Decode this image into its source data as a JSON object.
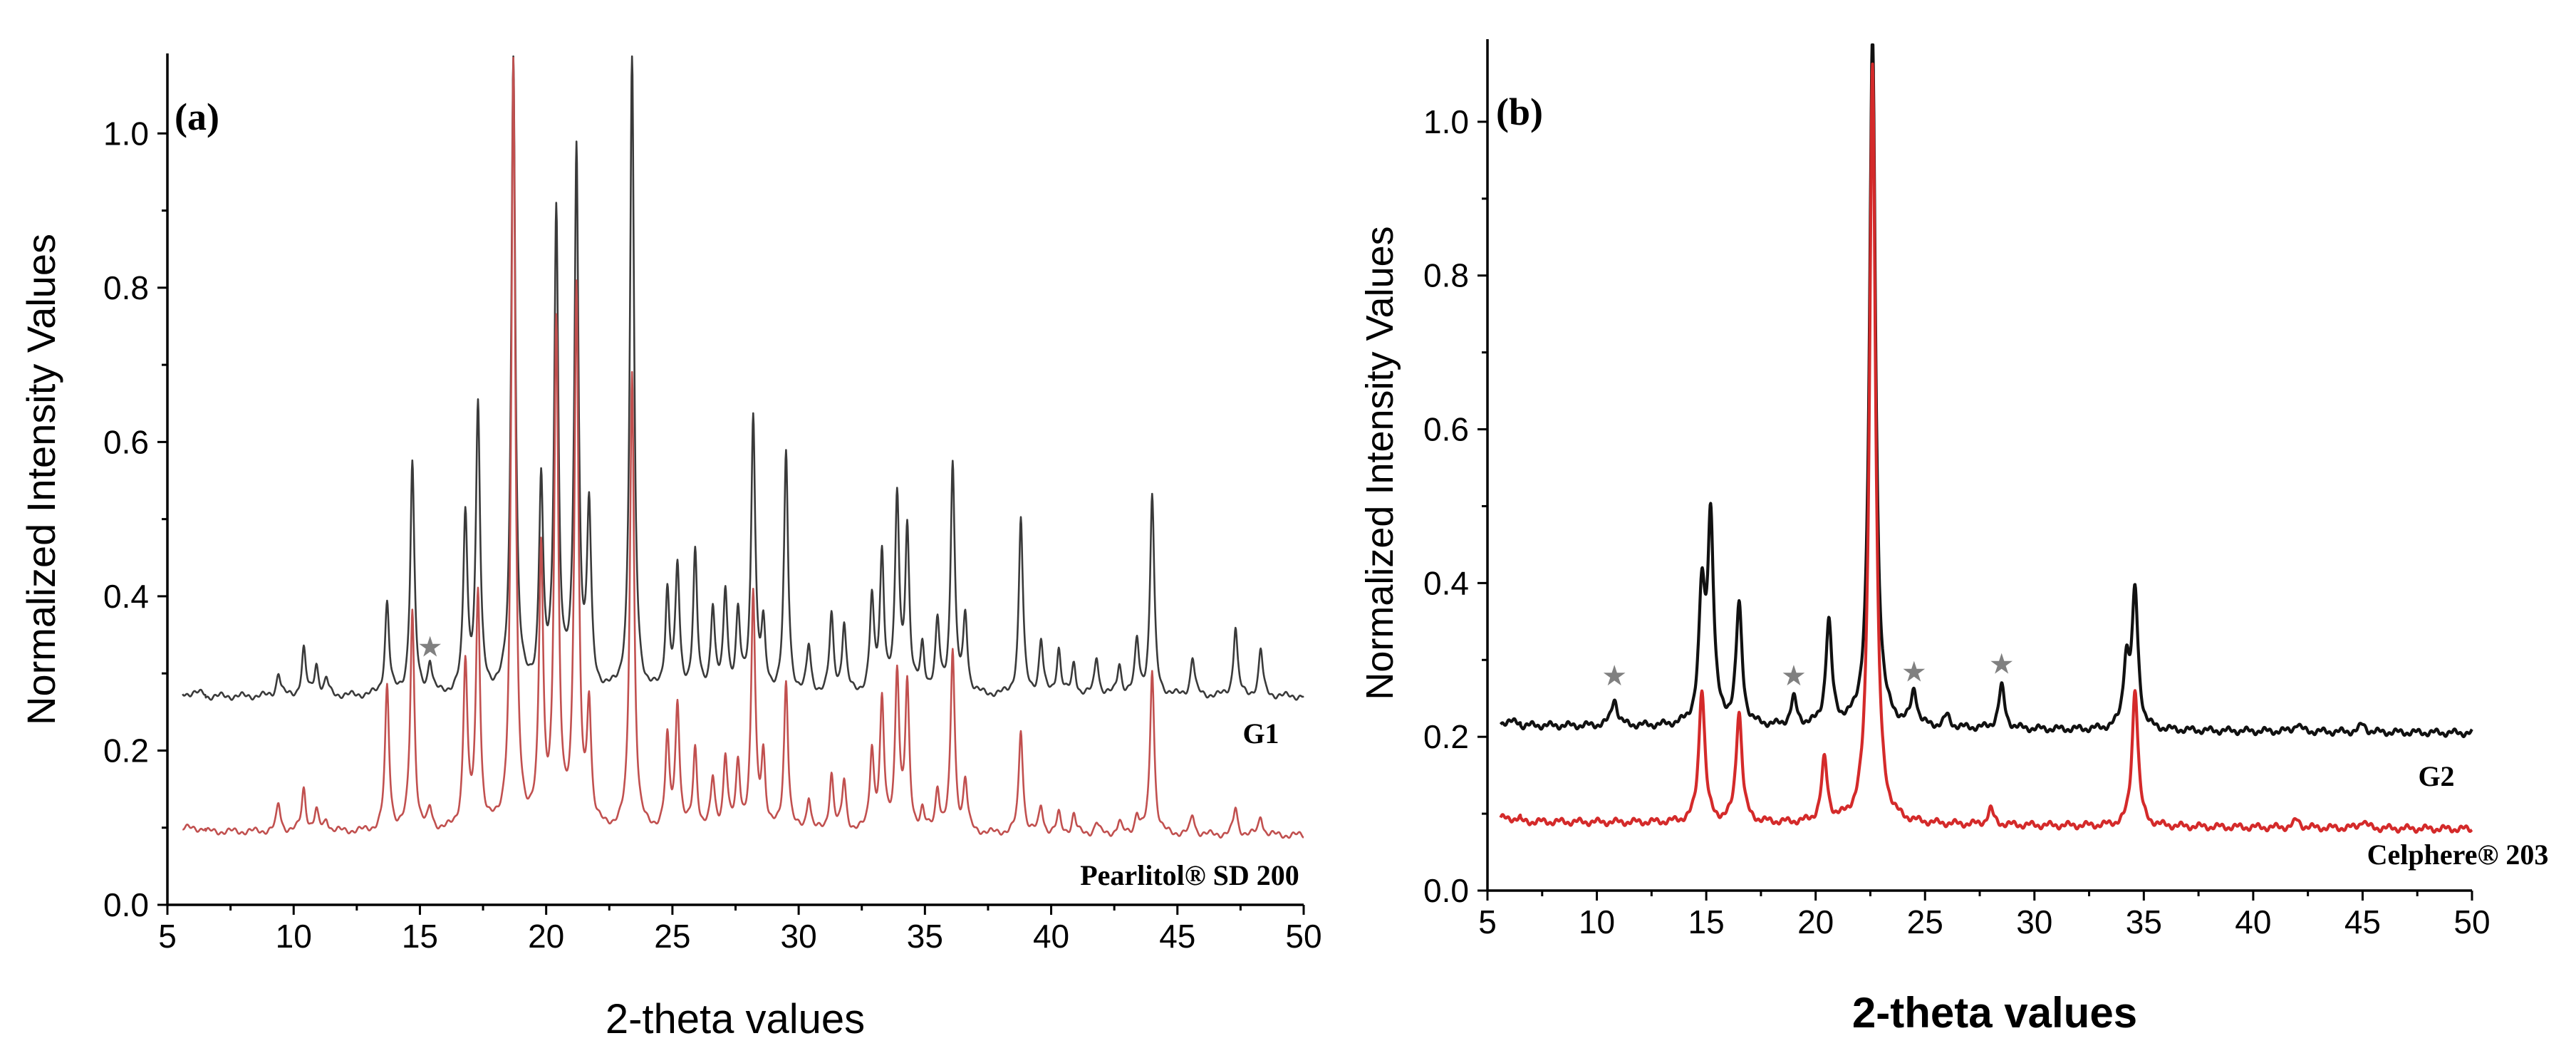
{
  "chart_data": [
    {
      "panel": "(a)",
      "type": "line",
      "xlabel": "2-theta values",
      "ylabel": "Normalized Intensity Values",
      "xlim": [
        5,
        50
      ],
      "ylim": [
        0.0,
        1.1
      ],
      "xticks": [
        5,
        10,
        15,
        20,
        25,
        30,
        35,
        40,
        45,
        50
      ],
      "yticks": [
        0.0,
        0.2,
        0.4,
        0.6,
        0.8,
        1.0
      ],
      "ytick_labels": [
        "0.0",
        "0.2",
        "0.4",
        "0.6",
        "0.8",
        "1.0"
      ],
      "series": [
        {
          "name": "G1",
          "color": "#3a3a3a",
          "baseline": 0.27,
          "end_baseline": 0.27,
          "peaks": [
            [
              9.4,
              0.3
            ],
            [
              10.4,
              0.33
            ],
            [
              10.9,
              0.31
            ],
            [
              11.3,
              0.29
            ],
            [
              13.7,
              0.39
            ],
            [
              14.7,
              0.57
            ],
            [
              15.4,
              0.31
            ],
            [
              16.8,
              0.5
            ],
            [
              17.3,
              0.64
            ],
            [
              18.7,
              1.1
            ],
            [
              19.8,
              0.54
            ],
            [
              20.4,
              0.89
            ],
            [
              21.2,
              0.97
            ],
            [
              21.7,
              0.5
            ],
            [
              23.4,
              1.1
            ],
            [
              24.8,
              0.4
            ],
            [
              25.2,
              0.43
            ],
            [
              25.9,
              0.45
            ],
            [
              26.6,
              0.38
            ],
            [
              27.1,
              0.4
            ],
            [
              27.6,
              0.37
            ],
            [
              28.2,
              0.63
            ],
            [
              28.6,
              0.35
            ],
            [
              29.5,
              0.58
            ],
            [
              30.4,
              0.33
            ],
            [
              31.3,
              0.37
            ],
            [
              31.8,
              0.36
            ],
            [
              32.9,
              0.39
            ],
            [
              33.3,
              0.45
            ],
            [
              33.9,
              0.52
            ],
            [
              34.3,
              0.48
            ],
            [
              34.9,
              0.33
            ],
            [
              35.5,
              0.36
            ],
            [
              36.1,
              0.57
            ],
            [
              36.6,
              0.37
            ],
            [
              38.8,
              0.5
            ],
            [
              39.6,
              0.34
            ],
            [
              40.3,
              0.33
            ],
            [
              40.9,
              0.31
            ],
            [
              41.8,
              0.32
            ],
            [
              42.7,
              0.31
            ],
            [
              43.4,
              0.34
            ],
            [
              44.0,
              0.53
            ],
            [
              45.6,
              0.32
            ],
            [
              47.3,
              0.36
            ],
            [
              48.3,
              0.33
            ]
          ]
        },
        {
          "name": "Pearlitol® SD 200",
          "color": "#c1504f",
          "baseline": 0.095,
          "end_baseline": 0.09,
          "peaks": [
            [
              9.4,
              0.13
            ],
            [
              10.4,
              0.15
            ],
            [
              10.9,
              0.12
            ],
            [
              11.3,
              0.11
            ],
            [
              13.7,
              0.28
            ],
            [
              14.7,
              0.38
            ],
            [
              15.4,
              0.12
            ],
            [
              16.8,
              0.31
            ],
            [
              17.3,
              0.4
            ],
            [
              18.7,
              1.09
            ],
            [
              19.8,
              0.45
            ],
            [
              20.4,
              0.74
            ],
            [
              21.2,
              0.79
            ],
            [
              21.7,
              0.25
            ],
            [
              23.4,
              0.69
            ],
            [
              24.8,
              0.21
            ],
            [
              25.2,
              0.26
            ],
            [
              25.9,
              0.2
            ],
            [
              26.6,
              0.16
            ],
            [
              27.1,
              0.19
            ],
            [
              27.6,
              0.18
            ],
            [
              28.2,
              0.4
            ],
            [
              28.6,
              0.19
            ],
            [
              29.5,
              0.29
            ],
            [
              30.4,
              0.14
            ],
            [
              31.3,
              0.17
            ],
            [
              31.8,
              0.16
            ],
            [
              32.9,
              0.2
            ],
            [
              33.3,
              0.26
            ],
            [
              33.9,
              0.3
            ],
            [
              34.3,
              0.28
            ],
            [
              34.9,
              0.12
            ],
            [
              35.5,
              0.15
            ],
            [
              36.1,
              0.33
            ],
            [
              36.6,
              0.16
            ],
            [
              38.8,
              0.23
            ],
            [
              39.6,
              0.13
            ],
            [
              40.3,
              0.12
            ],
            [
              40.9,
              0.12
            ],
            [
              41.8,
              0.11
            ],
            [
              42.7,
              0.11
            ],
            [
              43.4,
              0.12
            ],
            [
              44.0,
              0.31
            ],
            [
              45.6,
              0.12
            ],
            [
              47.3,
              0.13
            ],
            [
              48.3,
              0.12
            ]
          ]
        }
      ],
      "series_labels": [
        "G1",
        "Pearlitol® SD 200"
      ],
      "annotations": [
        {
          "text": "★",
          "x": 15.4,
          "y": 0.335
        }
      ]
    },
    {
      "panel": "(b)",
      "type": "line",
      "xlabel": "2-theta values",
      "ylabel": "Normalized Intensity Values",
      "xlim": [
        5,
        50
      ],
      "ylim": [
        0.0,
        1.1
      ],
      "xticks": [
        5,
        10,
        15,
        20,
        25,
        30,
        35,
        40,
        45,
        50
      ],
      "yticks": [
        0.0,
        0.2,
        0.4,
        0.6,
        0.8,
        1.0
      ],
      "ytick_labels": [
        "0.0",
        "0.2",
        "0.4",
        "0.6",
        "0.8",
        "1.0"
      ],
      "series": [
        {
          "name": "G2",
          "color": "#111111",
          "baseline": 0.215,
          "end_baseline": 0.205,
          "peaks": [
            [
              10.8,
              0.25
            ],
            [
              14.8,
              0.38
            ],
            [
              15.2,
              0.48
            ],
            [
              16.5,
              0.37
            ],
            [
              19.0,
              0.25
            ],
            [
              20.6,
              0.35
            ],
            [
              22.6,
              1.12
            ],
            [
              24.5,
              0.26
            ],
            [
              26.0,
              0.23
            ],
            [
              28.5,
              0.27
            ],
            [
              34.2,
              0.3
            ],
            [
              34.6,
              0.39
            ],
            [
              42.0,
              0.225
            ],
            [
              45.0,
              0.225
            ]
          ]
        },
        {
          "name": "Celphere® 203",
          "color": "#d42a2a",
          "baseline": 0.09,
          "end_baseline": 0.08,
          "peaks": [
            [
              14.8,
              0.265
            ],
            [
              16.5,
              0.235
            ],
            [
              20.4,
              0.17
            ],
            [
              22.6,
              1.08
            ],
            [
              28.0,
              0.11
            ],
            [
              34.6,
              0.27
            ],
            [
              42.0,
              0.1
            ],
            [
              45.0,
              0.1
            ]
          ]
        }
      ],
      "series_labels": [
        "G2",
        "Celphere® 203"
      ],
      "annotations": [
        {
          "text": "★",
          "x": 10.8,
          "y": 0.28
        },
        {
          "text": "★",
          "x": 19.0,
          "y": 0.28
        },
        {
          "text": "★",
          "x": 24.5,
          "y": 0.285
        },
        {
          "text": "★",
          "x": 28.5,
          "y": 0.295
        }
      ]
    }
  ]
}
